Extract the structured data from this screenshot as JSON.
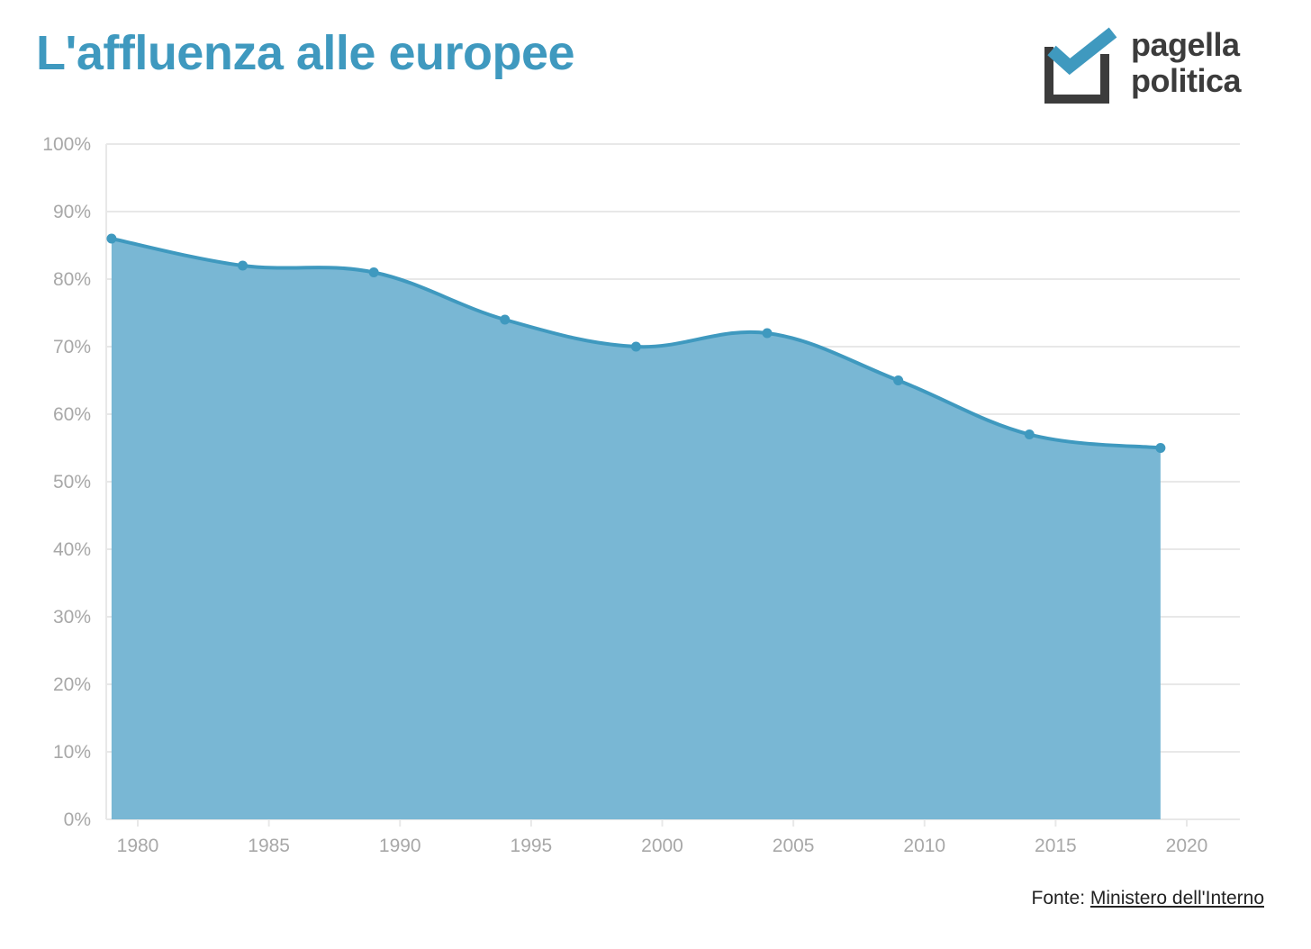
{
  "title": "L'affluenza alle europee",
  "logo": {
    "line1": "pagella",
    "line2": "politica",
    "icon": "checkbox-check-icon"
  },
  "source": {
    "label": "Fonte:",
    "link_text": "Ministero dell'Interno"
  },
  "colors": {
    "accent": "#3f99bf",
    "area": "#79b7d4",
    "grid": "#e8e8e8",
    "tick": "#a8a8a8",
    "logo_dark": "#3c3c3c"
  },
  "chart_data": {
    "type": "area",
    "title": "L'affluenza alle europee",
    "xlabel": "",
    "ylabel": "",
    "x": [
      1979,
      1984,
      1989,
      1994,
      1999,
      2004,
      2009,
      2014,
      2019
    ],
    "values": [
      86,
      82,
      81,
      74,
      70,
      72,
      65,
      57,
      55
    ],
    "xlim": [
      1978,
      2022
    ],
    "ylim": [
      0,
      100
    ],
    "x_ticks": [
      1980,
      1985,
      1990,
      1995,
      2000,
      2005,
      2010,
      2015,
      2020
    ],
    "y_ticks": [
      0,
      10,
      20,
      30,
      40,
      50,
      60,
      70,
      80,
      90,
      100
    ],
    "y_tick_labels": [
      "0%",
      "10%",
      "20%",
      "30%",
      "40%",
      "50%",
      "60%",
      "70%",
      "80%",
      "90%",
      "100%"
    ],
    "grid": true,
    "legend": "none"
  }
}
